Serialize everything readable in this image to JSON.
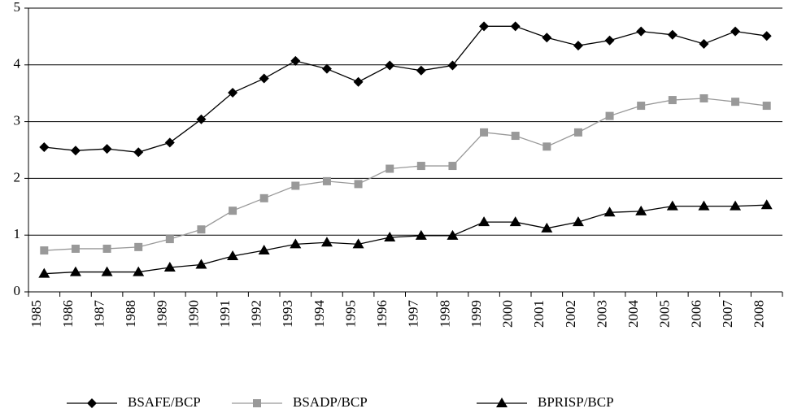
{
  "chart_data": {
    "type": "line",
    "categories": [
      "1985",
      "1986",
      "1987",
      "1988",
      "1989",
      "1990",
      "1991",
      "1992",
      "1993",
      "1994",
      "1995",
      "1996",
      "1997",
      "1998",
      "1999",
      "2000",
      "2001",
      "2002",
      "2003",
      "2004",
      "2005",
      "2006",
      "2007",
      "2008"
    ],
    "series": [
      {
        "name": "BSAFE/BCP",
        "color": "#000000",
        "marker": "diamond",
        "values": [
          2.55,
          2.49,
          2.52,
          2.46,
          2.63,
          3.04,
          3.51,
          3.76,
          4.07,
          3.93,
          3.7,
          3.99,
          3.9,
          3.99,
          4.68,
          4.68,
          4.48,
          4.34,
          4.43,
          4.59,
          4.53,
          4.37,
          4.59,
          4.51
        ]
      },
      {
        "name": "BSADP/BCP",
        "color": "#999999",
        "marker": "square",
        "values": [
          0.73,
          0.76,
          0.76,
          0.79,
          0.93,
          1.1,
          1.43,
          1.65,
          1.87,
          1.95,
          1.9,
          2.17,
          2.22,
          2.22,
          2.81,
          2.75,
          2.56,
          2.81,
          3.1,
          3.28,
          3.38,
          3.41,
          3.35,
          3.28
        ]
      },
      {
        "name": "BPRISP/BCP",
        "color": "#000000",
        "marker": "triangle",
        "values": [
          0.32,
          0.35,
          0.35,
          0.35,
          0.43,
          0.48,
          0.63,
          0.73,
          0.84,
          0.87,
          0.84,
          0.96,
          0.99,
          0.99,
          1.23,
          1.23,
          1.12,
          1.23,
          1.4,
          1.42,
          1.51,
          1.51,
          1.51,
          1.53
        ]
      }
    ],
    "ylim": [
      0,
      5
    ],
    "yticks": [
      0,
      1,
      2,
      3,
      4,
      5
    ],
    "grid": true,
    "legend": "bottom"
  }
}
